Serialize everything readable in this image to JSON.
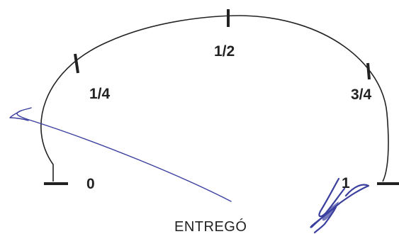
{
  "gauge": {
    "labels": {
      "zero": "0",
      "quarter": "1/4",
      "half": "1/2",
      "three_quarters": "3/4",
      "one": "1"
    }
  },
  "caption": {
    "text": "ENTREGÓ"
  },
  "colors": {
    "ink": "#222222",
    "pen": "#3a3f9e"
  }
}
